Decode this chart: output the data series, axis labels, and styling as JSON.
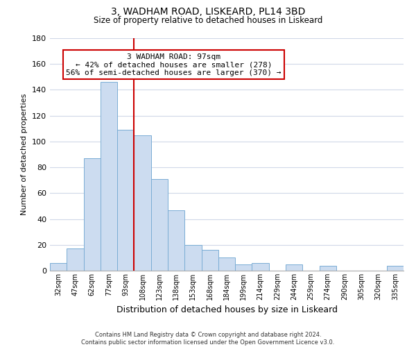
{
  "title": "3, WADHAM ROAD, LISKEARD, PL14 3BD",
  "subtitle": "Size of property relative to detached houses in Liskeard",
  "xlabel": "Distribution of detached houses by size in Liskeard",
  "ylabel": "Number of detached properties",
  "bar_labels": [
    "32sqm",
    "47sqm",
    "62sqm",
    "77sqm",
    "93sqm",
    "108sqm",
    "123sqm",
    "138sqm",
    "153sqm",
    "168sqm",
    "184sqm",
    "199sqm",
    "214sqm",
    "229sqm",
    "244sqm",
    "259sqm",
    "274sqm",
    "290sqm",
    "305sqm",
    "320sqm",
    "335sqm"
  ],
  "bar_values": [
    6,
    17,
    87,
    146,
    109,
    105,
    71,
    47,
    20,
    16,
    10,
    5,
    6,
    0,
    5,
    0,
    4,
    0,
    0,
    0,
    4
  ],
  "bar_color": "#ccdcf0",
  "bar_edge_color": "#7aadd4",
  "ylim": [
    0,
    180
  ],
  "yticks": [
    0,
    20,
    40,
    60,
    80,
    100,
    120,
    140,
    160,
    180
  ],
  "vline_x": 4.5,
  "vline_color": "#cc0000",
  "annotation_title": "3 WADHAM ROAD: 97sqm",
  "annotation_line1": "← 42% of detached houses are smaller (278)",
  "annotation_line2": "56% of semi-detached houses are larger (370) →",
  "annotation_box_color": "#ffffff",
  "annotation_box_edge": "#cc0000",
  "footer_line1": "Contains HM Land Registry data © Crown copyright and database right 2024.",
  "footer_line2": "Contains public sector information licensed under the Open Government Licence v3.0.",
  "bg_color": "#ffffff",
  "grid_color": "#d0d8e8"
}
